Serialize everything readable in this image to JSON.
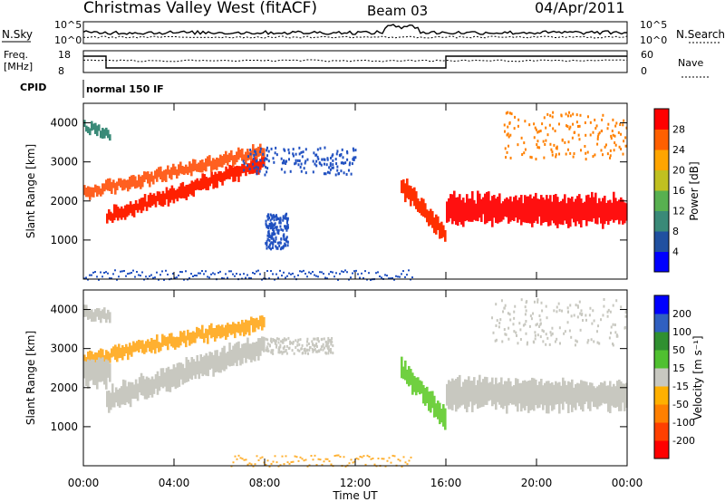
{
  "header": {
    "title": "Christmas Valley West (fitACF)",
    "beam": "Beam 03",
    "date": "04/Apr/2011"
  },
  "summary": {
    "nsky_label": "N.Sky",
    "nsearch_label": "N.Search",
    "noise_ticks": [
      "10^5",
      "10^0"
    ],
    "freq_label_1": "Freq.",
    "freq_label_2": "[MHz]",
    "freq_ticks": [
      "18",
      "8"
    ],
    "nave_label": "Nave",
    "nave_ticks": [
      "60",
      "0"
    ],
    "cpid_label": "CPID",
    "cpid_value": "normal 150 IF"
  },
  "chart_data": [
    {
      "type": "heatmap",
      "name": "Power",
      "ylabel": "Slant Range [km]",
      "ylim": [
        0,
        4500
      ],
      "yticks": [
        1000,
        2000,
        3000,
        4000
      ],
      "xlim": [
        0,
        24
      ],
      "colorbar_label": "Power [dB]",
      "colorbar_ticks": [
        "4",
        "8",
        "12",
        "16",
        "20",
        "24",
        "28"
      ],
      "colorscale": [
        "#0000ff",
        "#2050a0",
        "#3a8a78",
        "#58b050",
        "#c0c020",
        "#ffa500",
        "#ff6000",
        "#ff0000"
      ],
      "regions": [
        {
          "kind": "band",
          "from_h": 0,
          "to_h": 8.0,
          "r0": 2200,
          "r1": 3300,
          "width": 260,
          "color": "#ff6020"
        },
        {
          "kind": "band",
          "from_h": 1.0,
          "to_h": 8.0,
          "r0": 1600,
          "r1": 3000,
          "width": 320,
          "color": "#ff2000"
        },
        {
          "kind": "band",
          "from_h": 0,
          "to_h": 1.2,
          "r0": 3900,
          "r1": 3700,
          "width": 220,
          "color": "#3a8a78"
        },
        {
          "kind": "cloud",
          "from_h": 7.0,
          "to_h": 12.0,
          "r0": 2700,
          "r1": 3400,
          "color": "#2050c0"
        },
        {
          "kind": "cloud",
          "from_h": 8.0,
          "to_h": 9.0,
          "r0": 800,
          "r1": 1700,
          "color": "#2050c0"
        },
        {
          "kind": "band",
          "from_h": 14.0,
          "to_h": 16.0,
          "r0": 2400,
          "r1": 1100,
          "width": 420,
          "color": "#ff3000"
        },
        {
          "kind": "band",
          "from_h": 16.0,
          "to_h": 24.0,
          "r0": 1800,
          "r1": 1750,
          "width": 620,
          "color": "#ff1010"
        },
        {
          "kind": "cloud",
          "from_h": 18.5,
          "to_h": 24.0,
          "r0": 3100,
          "r1": 4300,
          "color": "#ff8000"
        },
        {
          "kind": "floor",
          "from_h": 0,
          "to_h": 14.5,
          "r0": 0,
          "r1": 250,
          "color": "#2050c0"
        }
      ]
    },
    {
      "type": "heatmap",
      "name": "Velocity",
      "ylabel": "Slant Range [km]",
      "xlabel": "Time UT",
      "ylim": [
        0,
        4500
      ],
      "yticks": [
        1000,
        2000,
        3000,
        4000
      ],
      "xlim": [
        0,
        24
      ],
      "xticks": [
        "00:00",
        "04:00",
        "08:00",
        "12:00",
        "16:00",
        "20:00",
        "00:00"
      ],
      "colorbar_label": "Velocity [m s^-1]",
      "colorbar_ticks": [
        "-200",
        "-100",
        "-50",
        "-15",
        "15",
        "50",
        "100",
        "200"
      ],
      "colorscale": [
        "#ff0000",
        "#ff4000",
        "#ff8000",
        "#ffb000",
        "#c8c8c0",
        "#50c030",
        "#309030",
        "#3060c0",
        "#0000ff"
      ],
      "regions": [
        {
          "kind": "band",
          "from_h": 0,
          "to_h": 8.0,
          "r0": 2700,
          "r1": 3700,
          "width": 300,
          "color": "#ffb030"
        },
        {
          "kind": "band",
          "from_h": 1.0,
          "to_h": 8.0,
          "r0": 1700,
          "r1": 3100,
          "width": 500,
          "color": "#c8c8c0"
        },
        {
          "kind": "band",
          "from_h": 0,
          "to_h": 1.2,
          "r0": 2400,
          "r1": 2400,
          "width": 600,
          "color": "#c8c8c0"
        },
        {
          "kind": "band",
          "from_h": 0,
          "to_h": 1.2,
          "r0": 3900,
          "r1": 3800,
          "width": 250,
          "color": "#c8c8c0"
        },
        {
          "kind": "cloud",
          "from_h": 8.0,
          "to_h": 11.0,
          "r0": 2900,
          "r1": 3300,
          "color": "#c8c8c0"
        },
        {
          "kind": "band",
          "from_h": 14.0,
          "to_h": 16.0,
          "r0": 2500,
          "r1": 1200,
          "width": 450,
          "color": "#70d040"
        },
        {
          "kind": "band",
          "from_h": 16.0,
          "to_h": 24.0,
          "r0": 1850,
          "r1": 1800,
          "width": 650,
          "color": "#c8c8c0"
        },
        {
          "kind": "cloud",
          "from_h": 18.0,
          "to_h": 24.0,
          "r0": 3100,
          "r1": 4300,
          "color": "#c8c8c0"
        },
        {
          "kind": "floor",
          "from_h": 6.5,
          "to_h": 14.5,
          "r0": 0,
          "r1": 300,
          "color": "#ffb030"
        }
      ]
    }
  ]
}
